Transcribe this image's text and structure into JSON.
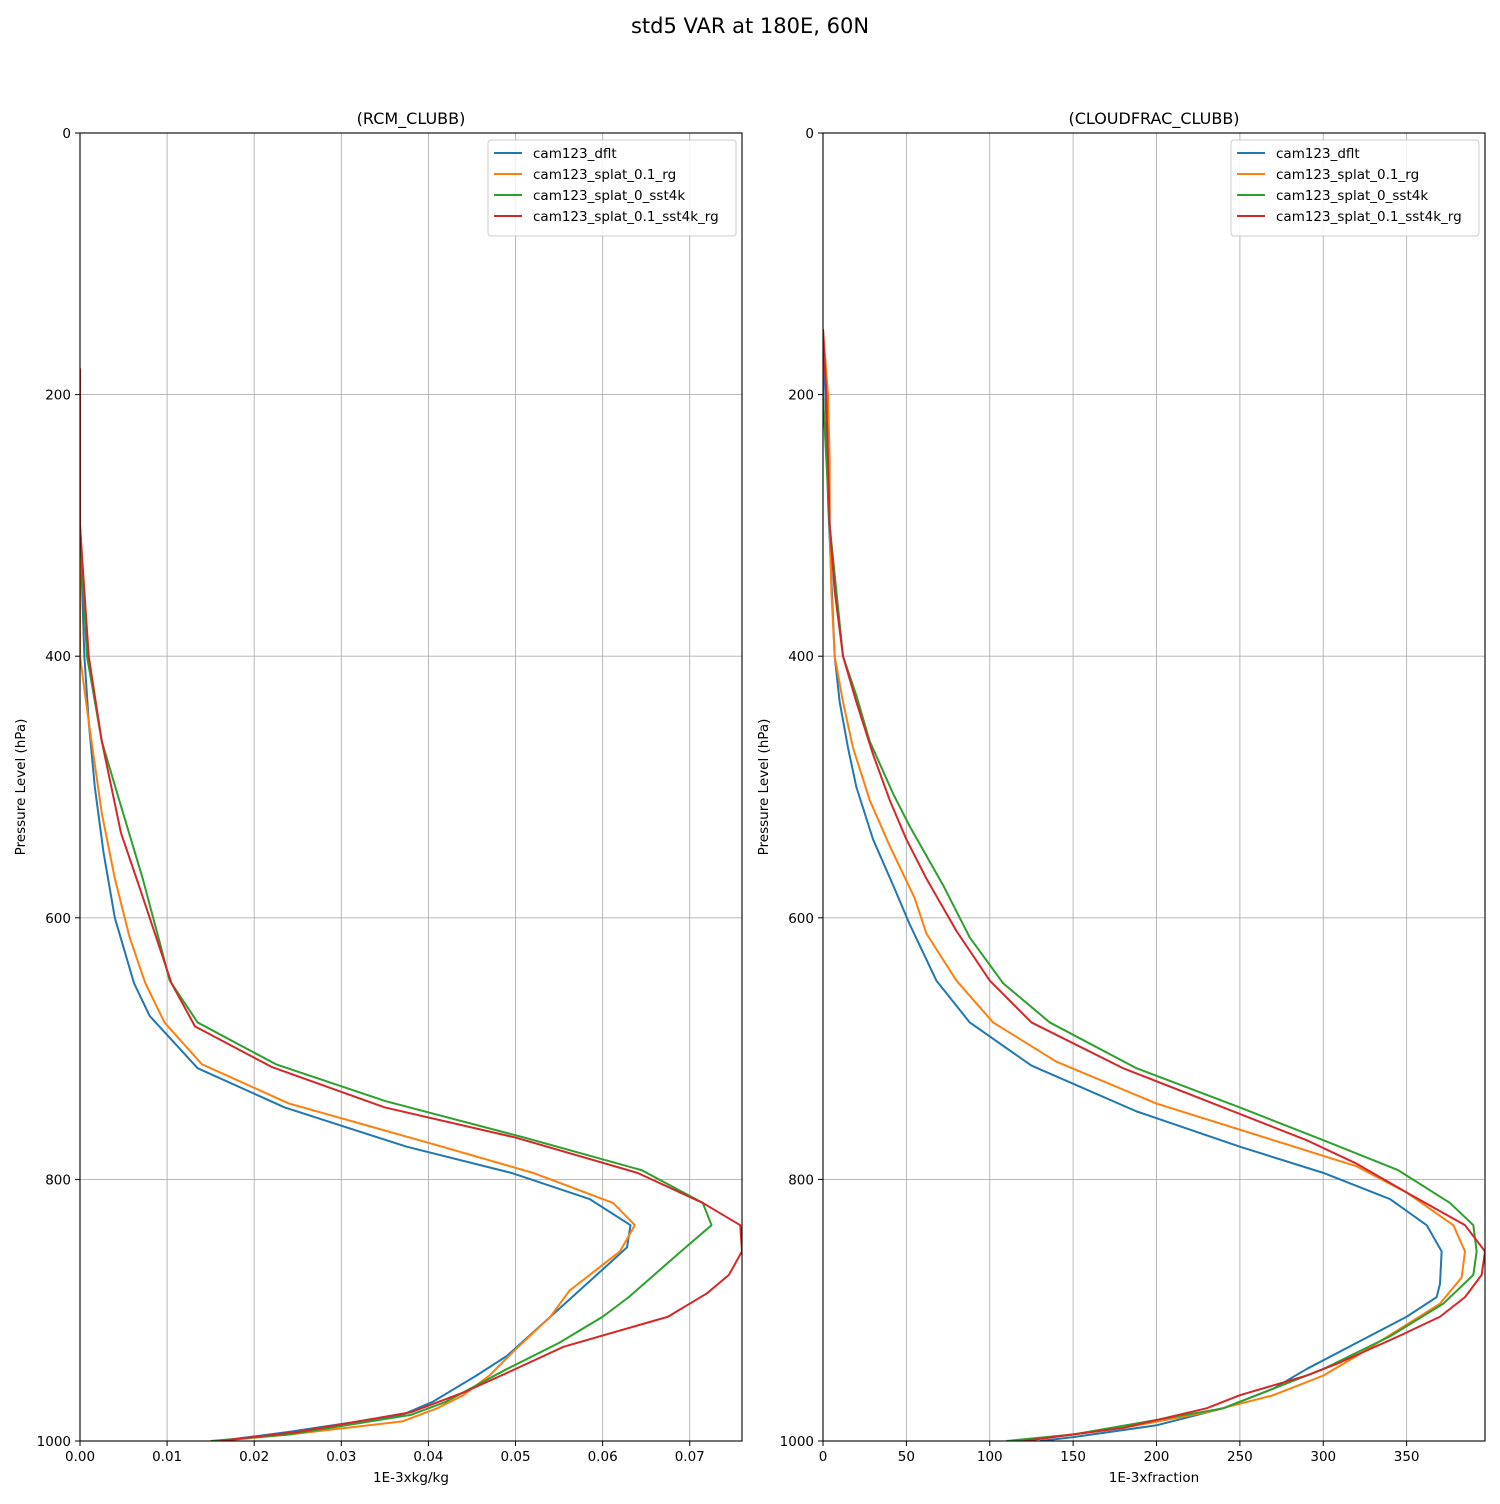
{
  "figure": {
    "suptitle": "std5 VAR at 180E, 60N"
  },
  "colors": {
    "cam123_dflt": "#1f77b4",
    "cam123_splat_0.1_rg": "#ff7f0e",
    "cam123_splat_0_sst4k": "#2ca02c",
    "cam123_splat_0.1_sst4k_rg": "#d62728",
    "grid": "#b0b0b0"
  },
  "chart_data": [
    {
      "type": "line",
      "title": "(RCM_CLUBB)",
      "xlabel": "1E-3xkg/kg",
      "ylabel": "Pressure Level (hPa)",
      "xlim": [
        0,
        0.076
      ],
      "ylim": [
        1000,
        0
      ],
      "xticks": [
        0,
        0.01,
        0.02,
        0.03,
        0.04,
        0.05,
        0.06,
        0.07
      ],
      "xtick_labels": [
        "0.00",
        "0.01",
        "0.02",
        "0.03",
        "0.04",
        "0.05",
        "0.06",
        "0.07"
      ],
      "yticks": [
        0,
        200,
        400,
        600,
        800,
        1000
      ],
      "ytick_labels": [
        "0",
        "200",
        "400",
        "600",
        "800",
        "1000"
      ],
      "grid": true,
      "legend_position": "top-right",
      "series": [
        {
          "name": "cam123_dflt",
          "color": "#1f77b4",
          "points": [
            [
              0,
              180
            ],
            [
              0,
              300
            ],
            [
              0.0005,
              400
            ],
            [
              0.001,
              450
            ],
            [
              0.0017,
              500
            ],
            [
              0.0027,
              550
            ],
            [
              0.004,
              600
            ],
            [
              0.0062,
              650
            ],
            [
              0.008,
              675
            ],
            [
              0.0135,
              715
            ],
            [
              0.0235,
              745
            ],
            [
              0.0375,
              775
            ],
            [
              0.0495,
              795
            ],
            [
              0.0585,
              815
            ],
            [
              0.0632,
              835
            ],
            [
              0.0628,
              852
            ],
            [
              0.054,
              905
            ],
            [
              0.049,
              935
            ],
            [
              0.0455,
              950
            ],
            [
              0.043,
              960
            ],
            [
              0.0405,
              970
            ],
            [
              0.037,
              980
            ],
            [
              0.024,
              993
            ],
            [
              0.016,
              1000
            ]
          ]
        },
        {
          "name": "cam123_splat_0.1_rg",
          "color": "#ff7f0e",
          "points": [
            [
              0,
              180
            ],
            [
              0,
              300
            ],
            [
              0,
              400
            ],
            [
              0.001,
              450
            ],
            [
              0.0025,
              520
            ],
            [
              0.004,
              570
            ],
            [
              0.0057,
              615
            ],
            [
              0.0075,
              650
            ],
            [
              0.0097,
              680
            ],
            [
              0.014,
              712
            ],
            [
              0.024,
              742
            ],
            [
              0.04,
              772
            ],
            [
              0.052,
              795
            ],
            [
              0.0612,
              818
            ],
            [
              0.0637,
              835
            ],
            [
              0.062,
              855
            ],
            [
              0.0562,
              885
            ],
            [
              0.054,
              905
            ],
            [
              0.05,
              930
            ],
            [
              0.047,
              950
            ],
            [
              0.044,
              965
            ],
            [
              0.041,
              975
            ],
            [
              0.037,
              985
            ],
            [
              0.024,
              995
            ],
            [
              0.016,
              1000
            ]
          ]
        },
        {
          "name": "cam123_splat_0_sst4k",
          "color": "#2ca02c",
          "points": [
            [
              0,
              180
            ],
            [
              0,
              300
            ],
            [
              0.0008,
              400
            ],
            [
              0.0025,
              465
            ],
            [
              0.0045,
              510
            ],
            [
              0.0072,
              570
            ],
            [
              0.0092,
              620
            ],
            [
              0.0103,
              648
            ],
            [
              0.0135,
              680
            ],
            [
              0.0225,
              712
            ],
            [
              0.035,
              740
            ],
            [
              0.051,
              768
            ],
            [
              0.0645,
              793
            ],
            [
              0.0715,
              818
            ],
            [
              0.0725,
              835
            ],
            [
              0.069,
              855
            ],
            [
              0.063,
              890
            ],
            [
              0.06,
              905
            ],
            [
              0.055,
              925
            ],
            [
              0.049,
              945
            ],
            [
              0.042,
              970
            ],
            [
              0.038,
              980
            ],
            [
              0.024,
              995
            ],
            [
              0.015,
              1000
            ]
          ]
        },
        {
          "name": "cam123_splat_0.1_sst4k_rg",
          "color": "#d62728",
          "points": [
            [
              0,
              180
            ],
            [
              0,
              300
            ],
            [
              0.001,
              400
            ],
            [
              0.0025,
              465
            ],
            [
              0.0047,
              535
            ],
            [
              0.007,
              580
            ],
            [
              0.009,
              620
            ],
            [
              0.0105,
              650
            ],
            [
              0.0132,
              683
            ],
            [
              0.022,
              714
            ],
            [
              0.035,
              745
            ],
            [
              0.05,
              768
            ],
            [
              0.064,
              795
            ],
            [
              0.0715,
              818
            ],
            [
              0.0758,
              835
            ],
            [
              0.076,
              855
            ],
            [
              0.0745,
              873
            ],
            [
              0.072,
              887
            ],
            [
              0.0675,
              905
            ],
            [
              0.0555,
              928
            ],
            [
              0.049,
              948
            ],
            [
              0.044,
              963
            ],
            [
              0.038,
              978
            ],
            [
              0.025,
              993
            ],
            [
              0.016,
              1000
            ]
          ]
        }
      ]
    },
    {
      "type": "line",
      "title": "(CLOUDFRAC_CLUBB)",
      "xlabel": "1E-3xfraction",
      "ylabel": "Pressure Level (hPa)",
      "xlim": [
        0,
        397
      ],
      "ylim": [
        1000,
        0
      ],
      "xticks": [
        0,
        50,
        100,
        150,
        200,
        250,
        300,
        350
      ],
      "xtick_labels": [
        "0",
        "50",
        "100",
        "150",
        "200",
        "250",
        "300",
        "350"
      ],
      "yticks": [
        0,
        200,
        400,
        600,
        800,
        1000
      ],
      "ytick_labels": [
        "0",
        "200",
        "400",
        "600",
        "800",
        "1000"
      ],
      "grid": true,
      "legend_position": "top-right",
      "series": [
        {
          "name": "cam123_dflt",
          "color": "#1f77b4",
          "points": [
            [
              0,
              150
            ],
            [
              2,
              220
            ],
            [
              3,
              280
            ],
            [
              5,
              340
            ],
            [
              7,
              400
            ],
            [
              10,
              435
            ],
            [
              15,
              470
            ],
            [
              20,
              500
            ],
            [
              30,
              540
            ],
            [
              42,
              575
            ],
            [
              52,
              605
            ],
            [
              68,
              648
            ],
            [
              88,
              680
            ],
            [
              125,
              713
            ],
            [
              188,
              748
            ],
            [
              250,
              775
            ],
            [
              300,
              795
            ],
            [
              340,
              815
            ],
            [
              362,
              835
            ],
            [
              371,
              855
            ],
            [
              370,
              880
            ],
            [
              368,
              890
            ],
            [
              350,
              905
            ],
            [
              320,
              925
            ],
            [
              290,
              945
            ],
            [
              270,
              960
            ],
            [
              240,
              975
            ],
            [
              200,
              988
            ],
            [
              150,
              997
            ],
            [
              130,
              1000
            ]
          ]
        },
        {
          "name": "cam123_splat_0.1_rg",
          "color": "#ff7f0e",
          "points": [
            [
              0,
              150
            ],
            [
              3,
              200
            ],
            [
              4,
              250
            ],
            [
              4,
              300
            ],
            [
              5,
              350
            ],
            [
              7,
              400
            ],
            [
              12,
              435
            ],
            [
              18,
              470
            ],
            [
              28,
              510
            ],
            [
              40,
              545
            ],
            [
              55,
              585
            ],
            [
              62,
              612
            ],
            [
              80,
              648
            ],
            [
              102,
              680
            ],
            [
              140,
              710
            ],
            [
              200,
              742
            ],
            [
              270,
              770
            ],
            [
              320,
              790
            ],
            [
              350,
              810
            ],
            [
              378,
              835
            ],
            [
              385,
              855
            ],
            [
              383,
              875
            ],
            [
              370,
              895
            ],
            [
              345,
              915
            ],
            [
              320,
              935
            ],
            [
              300,
              950
            ],
            [
              290,
              955
            ],
            [
              270,
              965
            ],
            [
              230,
              978
            ],
            [
              180,
              990
            ],
            [
              120,
              1000
            ]
          ]
        },
        {
          "name": "cam123_splat_0_sst4k",
          "color": "#2ca02c",
          "points": [
            [
              0,
              150
            ],
            [
              0,
              200
            ],
            [
              2,
              250
            ],
            [
              4,
              300
            ],
            [
              8,
              350
            ],
            [
              12,
              400
            ],
            [
              20,
              430
            ],
            [
              28,
              465
            ],
            [
              42,
              505
            ],
            [
              52,
              530
            ],
            [
              72,
              575
            ],
            [
              88,
              615
            ],
            [
              108,
              650
            ],
            [
              136,
              680
            ],
            [
              188,
              715
            ],
            [
              250,
              745
            ],
            [
              300,
              770
            ],
            [
              345,
              793
            ],
            [
              376,
              818
            ],
            [
              390,
              835
            ],
            [
              392,
              855
            ],
            [
              390,
              873
            ],
            [
              372,
              895
            ],
            [
              340,
              920
            ],
            [
              300,
              945
            ],
            [
              260,
              965
            ],
            [
              240,
              975
            ],
            [
              150,
              995
            ],
            [
              110,
              1000
            ]
          ]
        },
        {
          "name": "cam123_splat_0.1_sst4k_rg",
          "color": "#d62728",
          "points": [
            [
              0,
              150
            ],
            [
              2,
              200
            ],
            [
              3,
              250
            ],
            [
              4,
              300
            ],
            [
              7,
              350
            ],
            [
              12,
              400
            ],
            [
              20,
              435
            ],
            [
              30,
              475
            ],
            [
              40,
              510
            ],
            [
              50,
              540
            ],
            [
              62,
              570
            ],
            [
              80,
              610
            ],
            [
              100,
              648
            ],
            [
              125,
              680
            ],
            [
              180,
              715
            ],
            [
              240,
              745
            ],
            [
              290,
              770
            ],
            [
              320,
              788
            ],
            [
              350,
              810
            ],
            [
              385,
              835
            ],
            [
              397,
              855
            ],
            [
              395,
              873
            ],
            [
              385,
              890
            ],
            [
              370,
              905
            ],
            [
              345,
              920
            ],
            [
              310,
              940
            ],
            [
              290,
              950
            ],
            [
              250,
              965
            ],
            [
              230,
              975
            ],
            [
              180,
              990
            ],
            [
              120,
              1000
            ]
          ]
        }
      ]
    }
  ]
}
